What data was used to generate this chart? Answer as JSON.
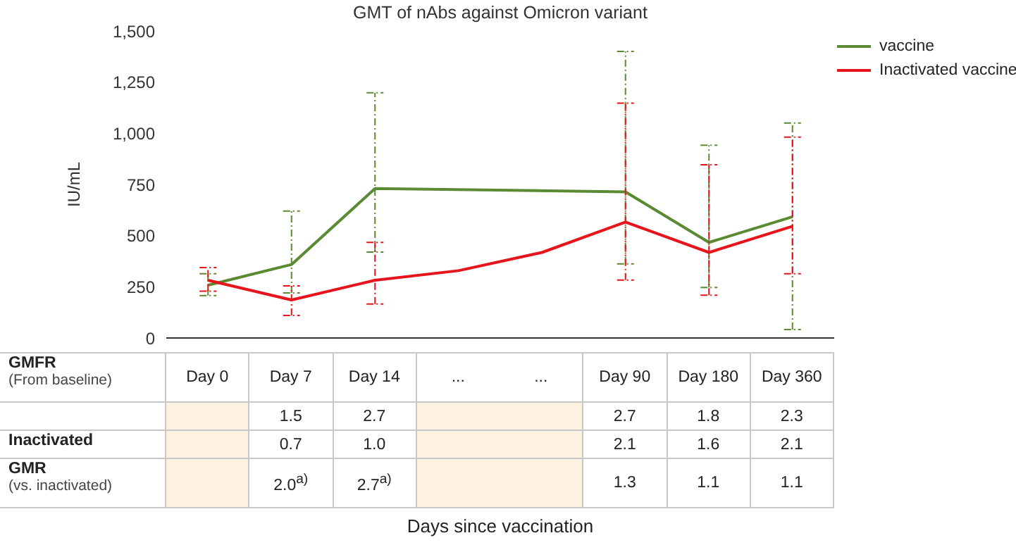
{
  "chart_data": {
    "type": "line",
    "title": "GMT of nAbs against Omicron variant",
    "ylabel": "IU/mL",
    "categories": [
      "Day 0",
      "Day 7",
      "Day 14",
      "...",
      "...",
      "Day 90",
      "Day 180",
      "Day 360"
    ],
    "series": [
      {
        "name": "vaccine",
        "color": "#5a8a32",
        "values": [
          258,
          359,
          730,
          null,
          null,
          714,
          467,
          592
        ],
        "errors": [
          [
            207,
            314
          ],
          [
            220,
            620
          ],
          [
            420,
            1198
          ],
          null,
          null,
          [
            362,
            1400
          ],
          [
            247,
            942
          ],
          [
            41,
            1050
          ]
        ]
      },
      {
        "name": "Inactivated vaccine",
        "color": "#e8141c",
        "values": [
          282,
          186,
          282,
          329,
          418,
          566,
          418,
          546
        ],
        "errors": [
          [
            229,
            344
          ],
          [
            110,
            255
          ],
          [
            166,
            467
          ],
          null,
          null,
          [
            283,
            1147
          ],
          [
            209,
            846
          ],
          [
            314,
            981
          ]
        ]
      }
    ],
    "ylim": [
      0,
      1500
    ],
    "yticks": [
      0,
      {
        "value": 250,
        "label": "250"
      },
      {
        "value": 500,
        "label": "500"
      },
      {
        "value": 750,
        "label": "750"
      },
      {
        "value": 1000,
        "label": "1,000"
      },
      {
        "value": 1250,
        "label": "1,250"
      },
      {
        "value": 1500,
        "label": "1,500"
      }
    ],
    "legend": "top right",
    "marker": "none",
    "line_style": "solid",
    "annotations": [
      "GMFR",
      "(From baseline)",
      "1.5",
      "2.7",
      "2.7",
      "1.8",
      "2.3",
      "Inactivated",
      "0.7",
      "1.0",
      "2.1",
      "1.6",
      "2.1",
      "GMR",
      "(vs. inactivated)",
      "2.0$^{a)}$",
      "2.7$^{a)}$",
      "1.3",
      "1.1",
      "1.1",
      "Days since vaccination"
    ]
  }
}
